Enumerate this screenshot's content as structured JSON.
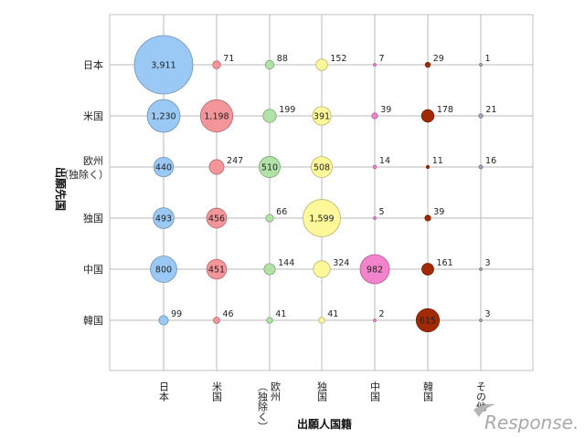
{
  "chart_data": {
    "type": "bubble",
    "title": "",
    "xlabel": "出願人国籍",
    "ylabel": "出願先国",
    "x_categories": [
      "日本",
      "米国",
      "欧州\n（独除く）",
      "独国",
      "中国",
      "韓国",
      "その他"
    ],
    "y_categories": [
      "日本",
      "米国",
      "欧州\n（独除く）",
      "独国",
      "中国",
      "韓国"
    ],
    "colors": [
      "#9ac9f5",
      "#f4959a",
      "#b2e2a8",
      "#fff89a",
      "#f283cc",
      "#a12a05",
      "#9aa6b8"
    ],
    "series": [
      {
        "name": "日本",
        "values": [
          3911,
          1230,
          440,
          493,
          800,
          99
        ]
      },
      {
        "name": "米国",
        "values": [
          71,
          1198,
          247,
          456,
          451,
          46
        ]
      },
      {
        "name": "欧州（独除く）",
        "values": [
          88,
          199,
          510,
          66,
          144,
          41
        ]
      },
      {
        "name": "独国",
        "values": [
          152,
          391,
          508,
          1599,
          324,
          41
        ]
      },
      {
        "name": "中国",
        "values": [
          7,
          39,
          14,
          5,
          982,
          2
        ]
      },
      {
        "name": "韓国",
        "values": [
          29,
          178,
          11,
          39,
          161,
          615
        ]
      },
      {
        "name": "その他",
        "values": [
          1,
          21,
          16,
          null,
          3,
          3
        ]
      }
    ],
    "grid": true
  },
  "watermark": {
    "text": "Response."
  }
}
